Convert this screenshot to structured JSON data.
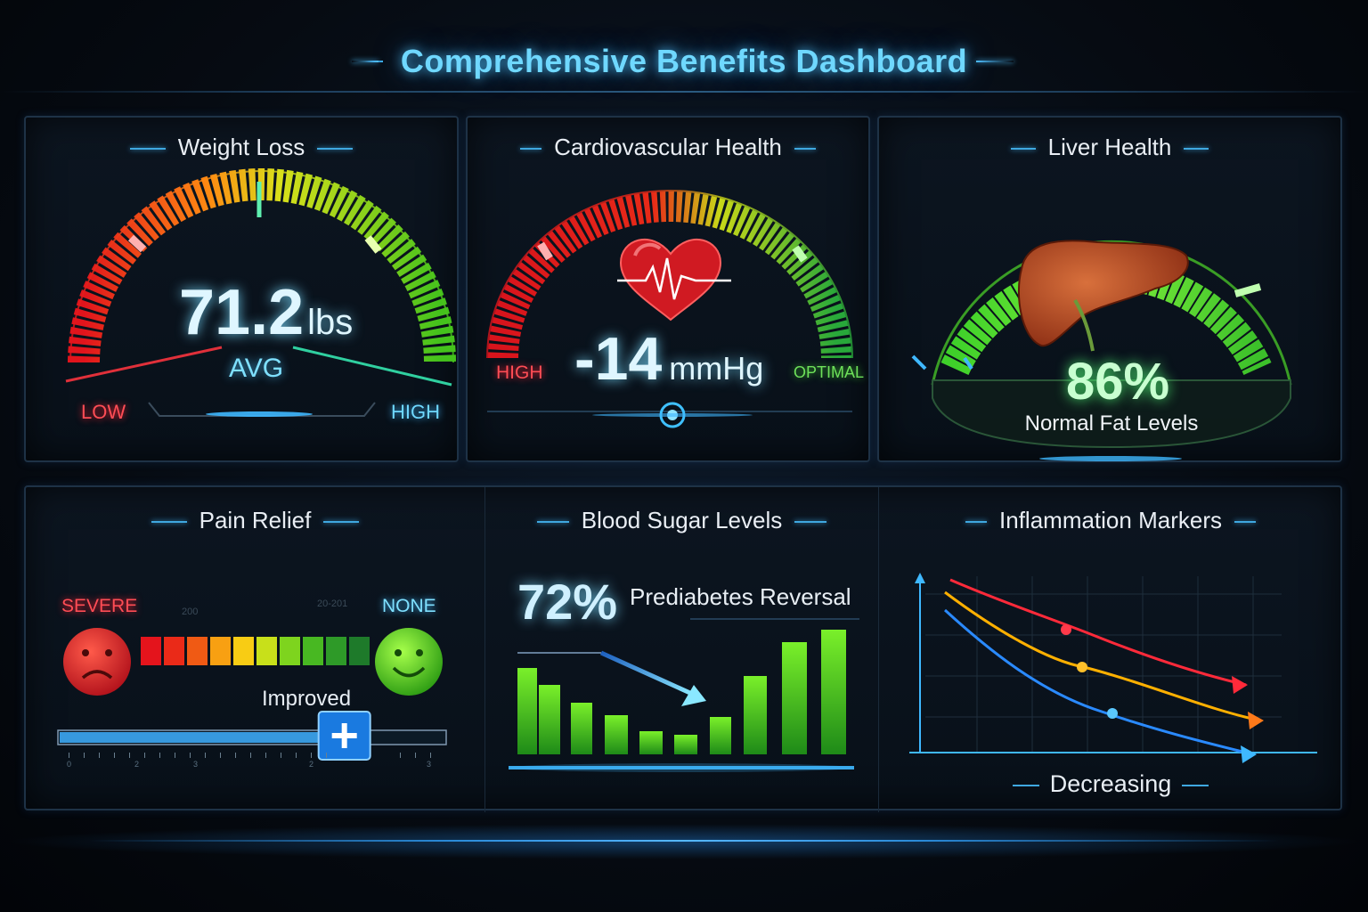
{
  "header": {
    "title": "Comprehensive Benefits Dashboard"
  },
  "weight_loss": {
    "title": "Weight Loss",
    "value": "71.2",
    "unit": "lbs",
    "sub": "AVG",
    "low_label": "LOW",
    "high_label": "HIGH"
  },
  "cardio": {
    "title": "Cardiovascular Health",
    "value": "-14",
    "unit": "mmHg",
    "high_label": "HIGH",
    "optimal_label": "OPTIMAL"
  },
  "liver": {
    "title": "Liver Health",
    "value": "86%",
    "caption": "Normal Fat Levels"
  },
  "pain": {
    "title": "Pain Relief",
    "severe_label": "SEVERE",
    "none_label": "NONE",
    "improved_label": "Improved",
    "faint_left": "200",
    "faint_right": "20-201",
    "slider_level": 0.74,
    "ticks": [
      "0",
      "1",
      "2",
      "3",
      "4",
      "2",
      "3"
    ]
  },
  "blood_sugar": {
    "title": "Blood Sugar Levels",
    "value": "72%",
    "caption": "Prediabetes Reversal"
  },
  "inflammation": {
    "title": "Inflammation Markers",
    "caption": "Decreasing"
  },
  "colors": {
    "accent": "#57c8ff",
    "red": "#e8232a",
    "green": "#5de02a",
    "orange": "#ffa51f"
  }
}
